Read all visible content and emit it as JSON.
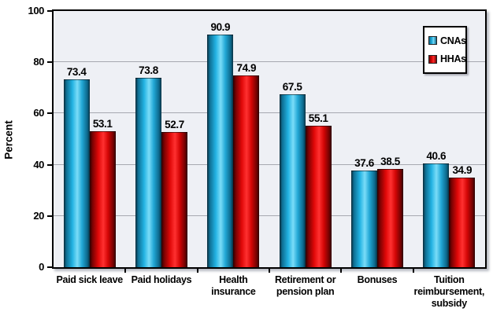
{
  "chart_data": {
    "type": "bar",
    "categories": [
      "Paid sick leave",
      "Paid holidays",
      "Health insurance",
      "Retirement or pension plan",
      "Bonuses",
      "Tuition reimbursement, subsidy"
    ],
    "category_lines": [
      [
        "Paid sick leave"
      ],
      [
        "Paid holidays"
      ],
      [
        "Health insurance"
      ],
      [
        "Retirement or",
        "pension plan"
      ],
      [
        "Bonuses"
      ],
      [
        "Tuition",
        "reimbursement,",
        "subsidy"
      ]
    ],
    "series": [
      {
        "name": "CNAs",
        "color": "#22b2e2",
        "values": [
          73.4,
          73.8,
          90.9,
          67.5,
          37.6,
          40.6
        ]
      },
      {
        "name": "HHAs",
        "color": "#e00808",
        "values": [
          53.1,
          52.7,
          74.9,
          55.1,
          38.5,
          34.9
        ]
      }
    ],
    "title": "",
    "xlabel": "",
    "ylabel": "Percent",
    "ylim": [
      0,
      100
    ],
    "yticks": [
      0,
      20,
      40,
      60,
      80,
      100
    ],
    "gridlines": [
      20,
      40,
      60,
      80
    ],
    "grid": true,
    "legend_position": "top-right"
  },
  "colors": {
    "plot_background": "#eef0f5",
    "gridline": "#a6a8b0",
    "frame": "#000000",
    "cnas_bar": "#22b2e2",
    "hhas_bar": "#e00808"
  }
}
